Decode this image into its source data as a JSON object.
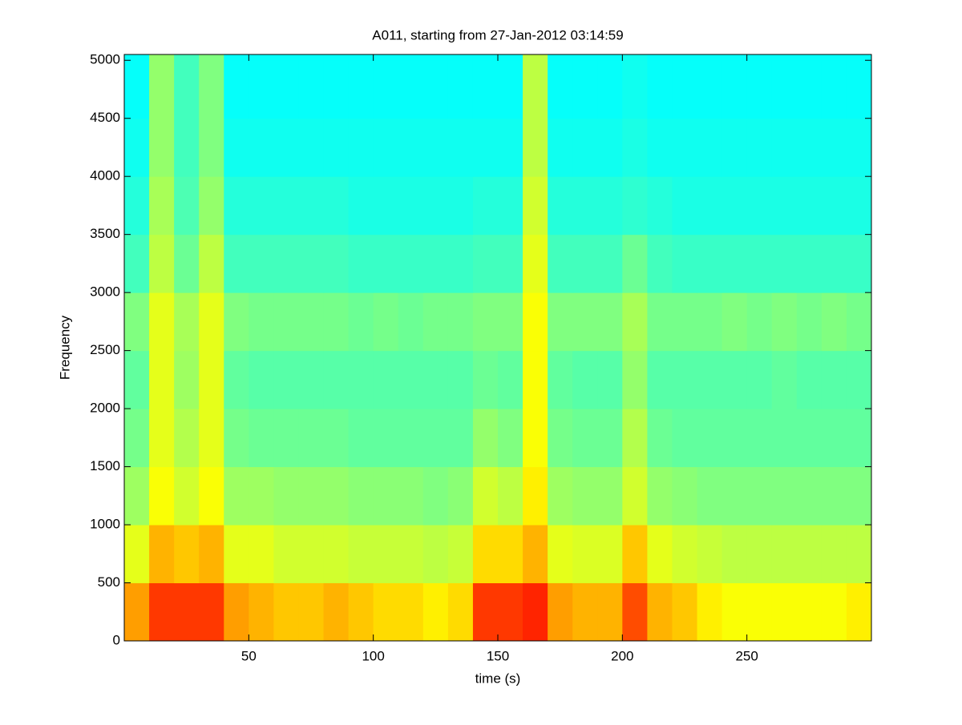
{
  "chart_data": {
    "type": "spectrogram",
    "title": "A011, starting from 27-Jan-2012 03:14:59",
    "x_label": "time (s)",
    "y_label": "Frequency",
    "colormap": "jet",
    "xlim": [
      0,
      300
    ],
    "ylim": [
      0,
      5050
    ],
    "xticks": [
      50,
      100,
      150,
      200,
      250
    ],
    "yticks": [
      0,
      500,
      1000,
      1500,
      2000,
      2500,
      3000,
      3500,
      4000,
      4500,
      5000
    ],
    "xbins": [
      0,
      10,
      20,
      30,
      40,
      50,
      60,
      70,
      80,
      90,
      100,
      110,
      120,
      130,
      140,
      150,
      160,
      170,
      180,
      190,
      200,
      210,
      220,
      230,
      240,
      250,
      260,
      270,
      280,
      290,
      300
    ],
    "ybins": [
      0,
      500,
      1000,
      1500,
      2000,
      2500,
      3000,
      3500,
      4000,
      4500,
      5000,
      5050
    ],
    "values": [
      [
        0.72,
        0.82,
        0.82,
        0.82,
        0.72,
        0.7,
        0.68,
        0.68,
        0.7,
        0.68,
        0.66,
        0.66,
        0.64,
        0.66,
        0.82,
        0.82,
        0.84,
        0.72,
        0.7,
        0.7,
        0.8,
        0.7,
        0.68,
        0.64,
        0.62,
        0.62,
        0.62,
        0.62,
        0.62,
        0.64
      ],
      [
        0.6,
        0.7,
        0.68,
        0.7,
        0.6,
        0.6,
        0.58,
        0.58,
        0.58,
        0.57,
        0.57,
        0.57,
        0.56,
        0.57,
        0.66,
        0.66,
        0.7,
        0.6,
        0.59,
        0.59,
        0.68,
        0.6,
        0.58,
        0.57,
        0.56,
        0.56,
        0.56,
        0.56,
        0.56,
        0.56
      ],
      [
        0.53,
        0.62,
        0.58,
        0.62,
        0.53,
        0.53,
        0.52,
        0.52,
        0.52,
        0.51,
        0.51,
        0.51,
        0.5,
        0.51,
        0.58,
        0.56,
        0.64,
        0.53,
        0.52,
        0.52,
        0.58,
        0.52,
        0.51,
        0.5,
        0.5,
        0.5,
        0.5,
        0.5,
        0.5,
        0.5
      ],
      [
        0.49,
        0.6,
        0.55,
        0.6,
        0.49,
        0.48,
        0.48,
        0.48,
        0.48,
        0.47,
        0.47,
        0.47,
        0.47,
        0.47,
        0.52,
        0.5,
        0.62,
        0.49,
        0.48,
        0.48,
        0.55,
        0.48,
        0.47,
        0.47,
        0.47,
        0.47,
        0.47,
        0.47,
        0.47,
        0.47
      ],
      [
        0.47,
        0.6,
        0.53,
        0.6,
        0.47,
        0.46,
        0.46,
        0.46,
        0.46,
        0.46,
        0.46,
        0.46,
        0.46,
        0.46,
        0.48,
        0.47,
        0.62,
        0.47,
        0.46,
        0.46,
        0.52,
        0.46,
        0.46,
        0.46,
        0.46,
        0.46,
        0.47,
        0.46,
        0.46,
        0.46
      ],
      [
        0.5,
        0.6,
        0.54,
        0.6,
        0.5,
        0.49,
        0.49,
        0.49,
        0.49,
        0.48,
        0.49,
        0.48,
        0.49,
        0.49,
        0.5,
        0.5,
        0.62,
        0.5,
        0.5,
        0.5,
        0.54,
        0.49,
        0.49,
        0.49,
        0.5,
        0.49,
        0.5,
        0.49,
        0.5,
        0.49
      ],
      [
        0.44,
        0.56,
        0.48,
        0.56,
        0.44,
        0.44,
        0.44,
        0.44,
        0.44,
        0.43,
        0.43,
        0.43,
        0.43,
        0.43,
        0.44,
        0.44,
        0.6,
        0.44,
        0.44,
        0.44,
        0.48,
        0.44,
        0.43,
        0.43,
        0.43,
        0.43,
        0.43,
        0.43,
        0.43,
        0.43
      ],
      [
        0.41,
        0.54,
        0.45,
        0.52,
        0.41,
        0.41,
        0.41,
        0.41,
        0.41,
        0.4,
        0.4,
        0.4,
        0.4,
        0.4,
        0.41,
        0.41,
        0.58,
        0.41,
        0.41,
        0.41,
        0.42,
        0.41,
        0.4,
        0.4,
        0.4,
        0.4,
        0.4,
        0.4,
        0.4,
        0.4
      ],
      [
        0.39,
        0.52,
        0.44,
        0.5,
        0.39,
        0.39,
        0.39,
        0.39,
        0.39,
        0.39,
        0.39,
        0.39,
        0.39,
        0.39,
        0.39,
        0.39,
        0.56,
        0.39,
        0.39,
        0.39,
        0.4,
        0.39,
        0.39,
        0.39,
        0.39,
        0.39,
        0.39,
        0.39,
        0.39,
        0.39
      ],
      [
        0.38,
        0.52,
        0.44,
        0.5,
        0.38,
        0.38,
        0.38,
        0.38,
        0.38,
        0.38,
        0.38,
        0.38,
        0.38,
        0.38,
        0.38,
        0.38,
        0.56,
        0.38,
        0.38,
        0.38,
        0.39,
        0.38,
        0.38,
        0.38,
        0.38,
        0.38,
        0.38,
        0.38,
        0.38,
        0.38
      ],
      [
        0.38,
        0.52,
        0.44,
        0.5,
        0.38,
        0.38,
        0.38,
        0.38,
        0.38,
        0.38,
        0.38,
        0.38,
        0.38,
        0.38,
        0.38,
        0.38,
        0.56,
        0.38,
        0.38,
        0.38,
        0.39,
        0.38,
        0.38,
        0.38,
        0.38,
        0.38,
        0.38,
        0.38,
        0.38,
        0.38
      ]
    ]
  }
}
